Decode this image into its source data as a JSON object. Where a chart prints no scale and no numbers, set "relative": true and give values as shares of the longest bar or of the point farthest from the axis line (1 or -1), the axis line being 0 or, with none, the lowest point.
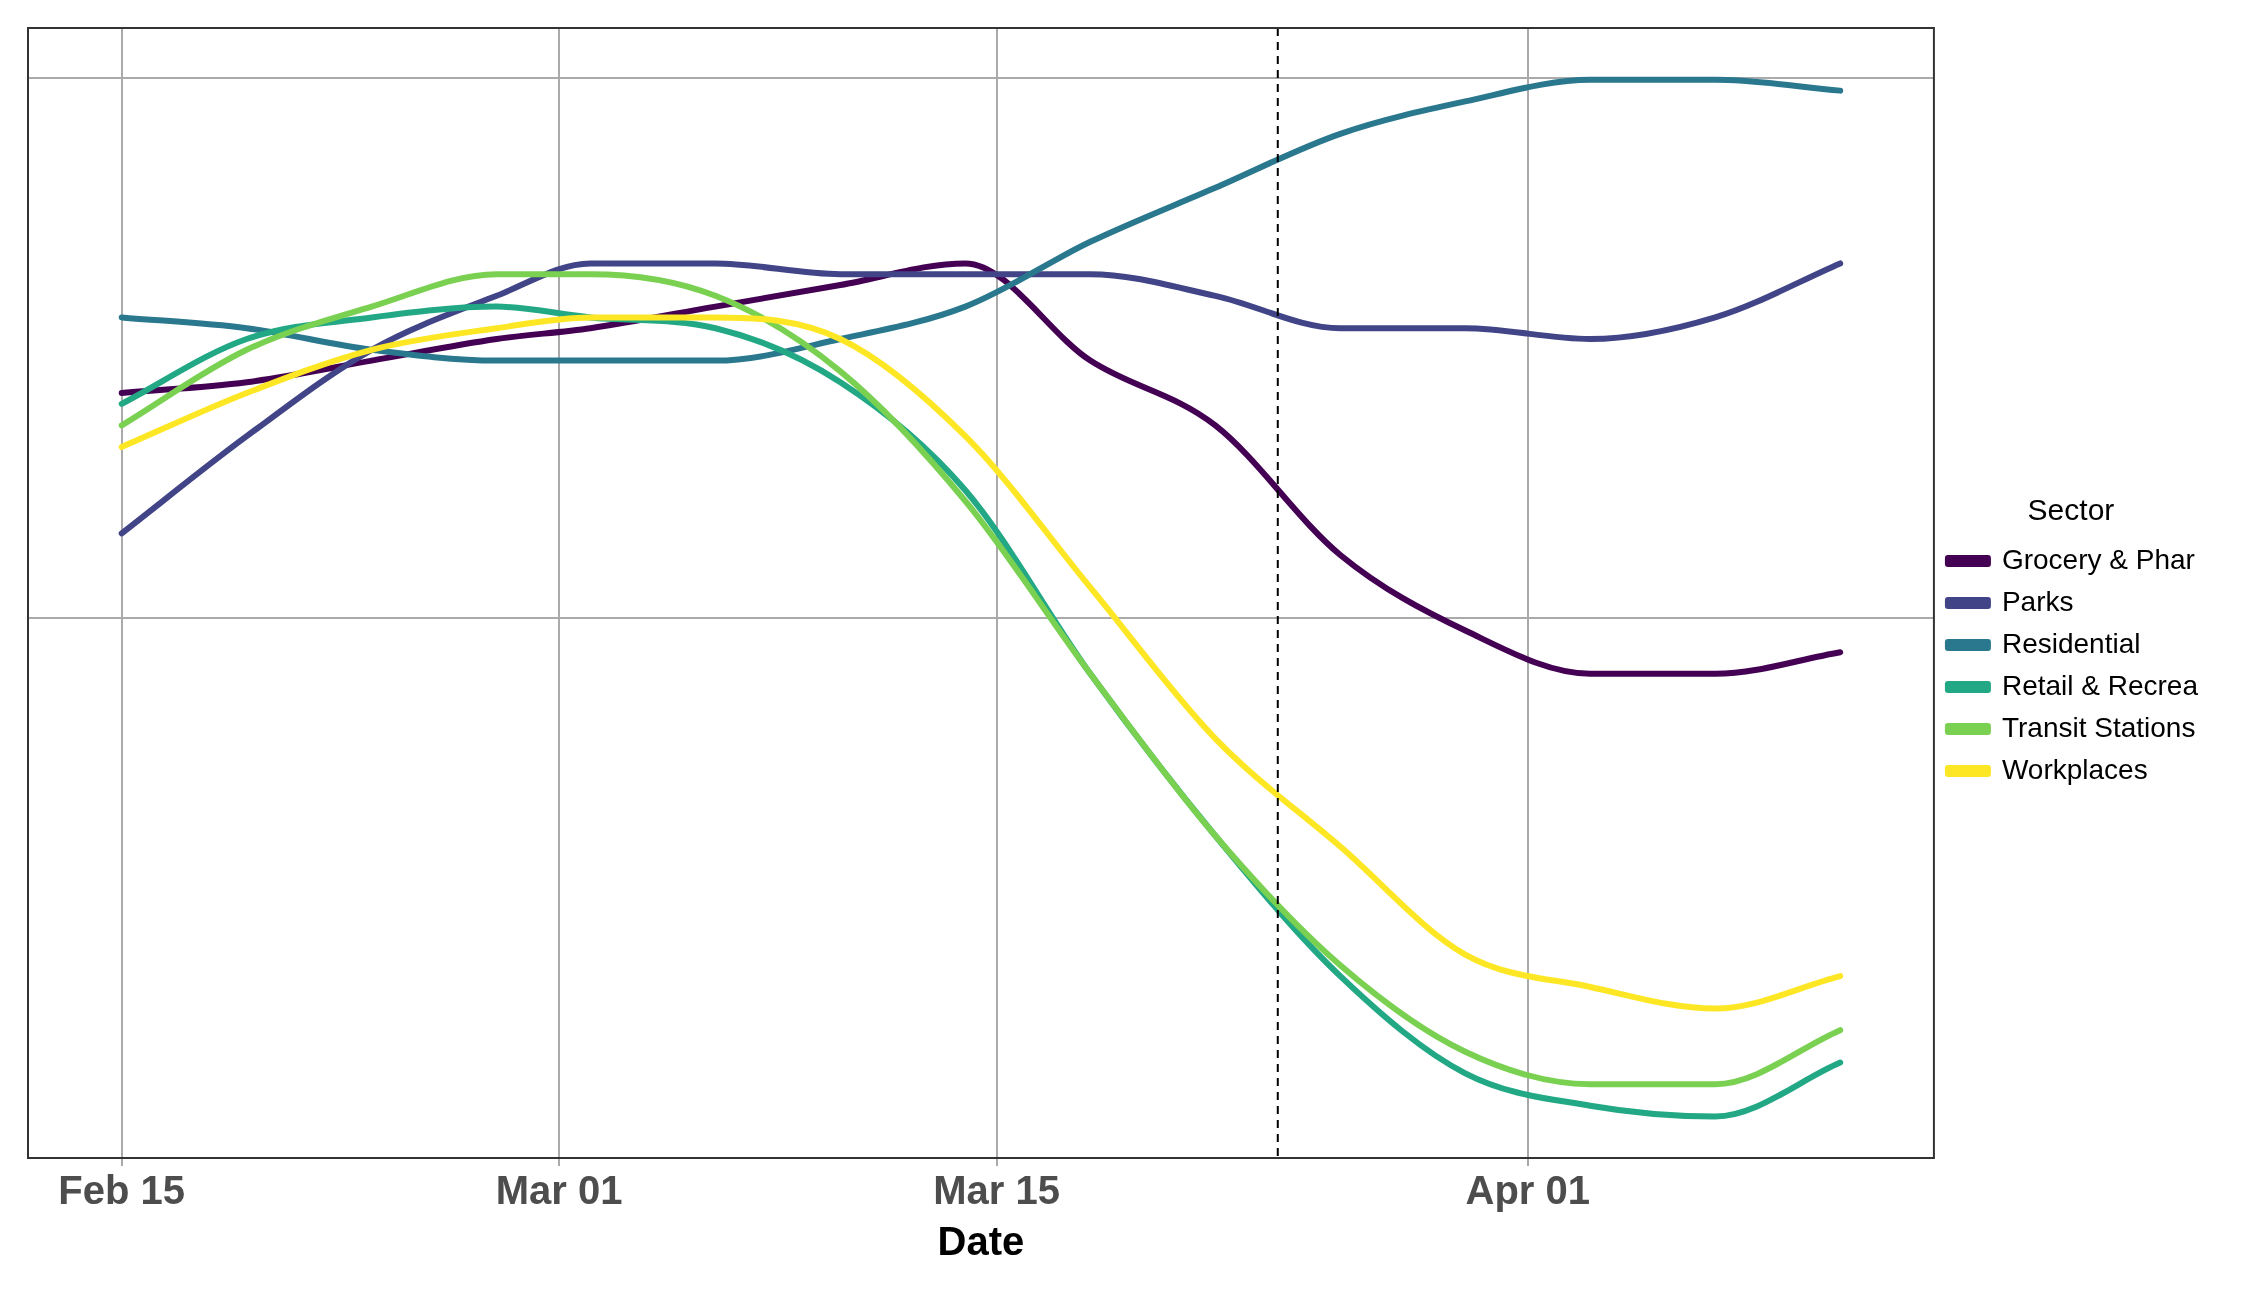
{
  "chart_data": {
    "type": "line",
    "xlabel": "Date",
    "legend_title": "Sector",
    "relative": true,
    "grid": true,
    "legend": "right",
    "line_style": "solid",
    "marker": "none",
    "x": [
      "--02-15",
      "--02-19",
      "--02-23",
      "--02-27",
      "--03-02",
      "--03-06",
      "--03-10",
      "--03-14",
      "--03-18",
      "--03-22",
      "--03-26",
      "--03-30",
      "--04-03",
      "--04-07",
      "--04-11"
    ],
    "xlim": [
      "--02-12",
      "--04-14"
    ],
    "xticks": [
      {
        "value": "--02-15",
        "label": "Feb 15"
      },
      {
        "value": "--03-01",
        "label": "Mar 01"
      },
      {
        "value": "--03-15",
        "label": "Mar 15"
      },
      {
        "value": "--04-01",
        "label": "Apr 01"
      }
    ],
    "ref_lines": [
      {
        "axis": "x",
        "value": "--03-24",
        "color": "#000000",
        "line_style": "dashed"
      }
    ],
    "series": [
      {
        "name": "Grocery & Phar",
        "color": "#440154",
        "values": [
          0.71,
          0.72,
          0.74,
          0.76,
          0.77,
          0.79,
          0.81,
          0.83,
          0.74,
          0.68,
          0.56,
          0.49,
          0.45,
          0.45,
          0.47
        ]
      },
      {
        "name": "Parks",
        "color": "#414487",
        "values": [
          0.58,
          0.67,
          0.75,
          0.8,
          0.83,
          0.83,
          0.82,
          0.82,
          0.82,
          0.8,
          0.77,
          0.77,
          0.76,
          0.78,
          0.83
        ]
      },
      {
        "name": "Residential",
        "color": "#2a788e",
        "values": [
          0.78,
          0.77,
          0.75,
          0.74,
          0.74,
          0.74,
          0.76,
          0.79,
          0.85,
          0.9,
          0.95,
          0.98,
          1.0,
          1.0,
          0.99
        ]
      },
      {
        "name": "Retail & Recrea",
        "color": "#22a884",
        "values": [
          0.7,
          0.76,
          0.78,
          0.79,
          0.78,
          0.77,
          0.72,
          0.62,
          0.45,
          0.3,
          0.17,
          0.08,
          0.05,
          0.04,
          0.09
        ]
      },
      {
        "name": "Transit Stations",
        "color": "#7ad151",
        "values": [
          0.68,
          0.75,
          0.79,
          0.82,
          0.82,
          0.8,
          0.73,
          0.61,
          0.45,
          0.3,
          0.18,
          0.1,
          0.07,
          0.07,
          0.12
        ]
      },
      {
        "name": "Workplaces",
        "color": "#fde725",
        "values": [
          0.66,
          0.71,
          0.75,
          0.77,
          0.78,
          0.78,
          0.76,
          0.67,
          0.53,
          0.39,
          0.29,
          0.19,
          0.16,
          0.14,
          0.17
        ]
      }
    ]
  }
}
